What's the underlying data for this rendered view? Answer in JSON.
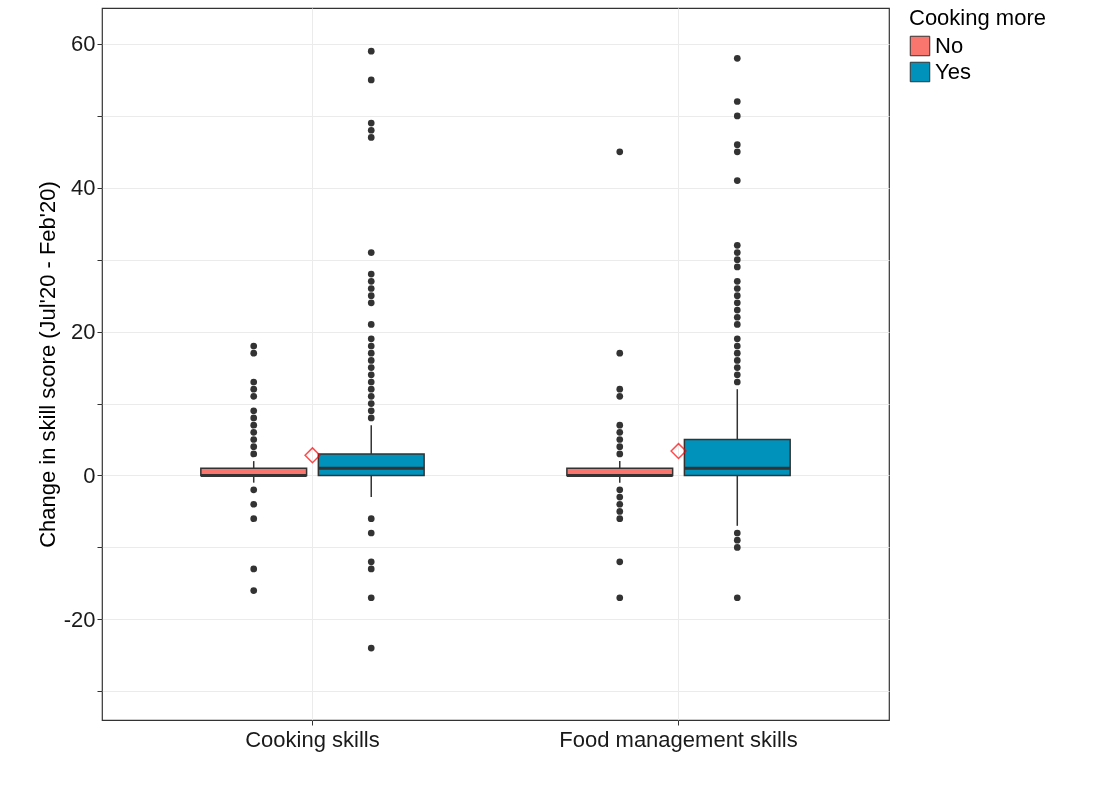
{
  "chart_data": {
    "type": "box",
    "ylabel": "Change in skill score (Jul'20 - Feb'20)",
    "legend_title": "Cooking more",
    "categories": [
      "Cooking skills",
      "Food management skills"
    ],
    "series": [
      {
        "name": "No",
        "color": "#f8766d",
        "boxes": [
          {
            "low": -1,
            "q1": 0,
            "median": 0,
            "q3": 1,
            "high": 2,
            "outliers": [
              18,
              17,
              13,
              12,
              11,
              9,
              8,
              7,
              6,
              5,
              4,
              3,
              -2,
              -4,
              -6,
              -13,
              -16
            ]
          },
          {
            "low": -1,
            "q1": 0,
            "median": 0,
            "q3": 1,
            "high": 2,
            "outliers": [
              45,
              17,
              12,
              11,
              7,
              6,
              5,
              4,
              3,
              -2,
              -3,
              -4,
              -5,
              -6,
              -12,
              -17
            ]
          }
        ]
      },
      {
        "name": "Yes",
        "color": "#0092bb",
        "boxes": [
          {
            "low": -3,
            "q1": 0,
            "median": 1,
            "q3": 3,
            "high": 7,
            "outliers": [
              59,
              55,
              49,
              48,
              47,
              31,
              28,
              27,
              26,
              25,
              24,
              21,
              19,
              18,
              17,
              16,
              15,
              14,
              13,
              12,
              11,
              10,
              9,
              8,
              -6,
              -8,
              -12,
              -13,
              -17,
              -24
            ]
          },
          {
            "low": -7,
            "q1": 0,
            "median": 1,
            "q3": 5,
            "high": 12,
            "outliers": [
              58,
              52,
              50,
              46,
              45,
              41,
              32,
              31,
              30,
              29,
              27,
              26,
              25,
              24,
              23,
              22,
              21,
              19,
              18,
              17,
              16,
              15,
              14,
              13,
              -8,
              -9,
              -10,
              -17
            ]
          }
        ]
      },
      {
        "type": "scatter",
        "color": "#ff0000",
        "marker": "diamond",
        "values": [
          2.8,
          3.4
        ]
      }
    ],
    "ylim": [
      -34,
      65
    ],
    "yticks": [
      {
        "value": -30,
        "label": null
      },
      -20,
      {
        "value": -10,
        "label": null
      },
      0,
      {
        "value": 10,
        "label": null
      },
      20,
      {
        "value": 30,
        "label": null
      },
      40,
      {
        "value": 50,
        "label": null
      },
      60
    ],
    "grid": true,
    "legend": "right"
  }
}
